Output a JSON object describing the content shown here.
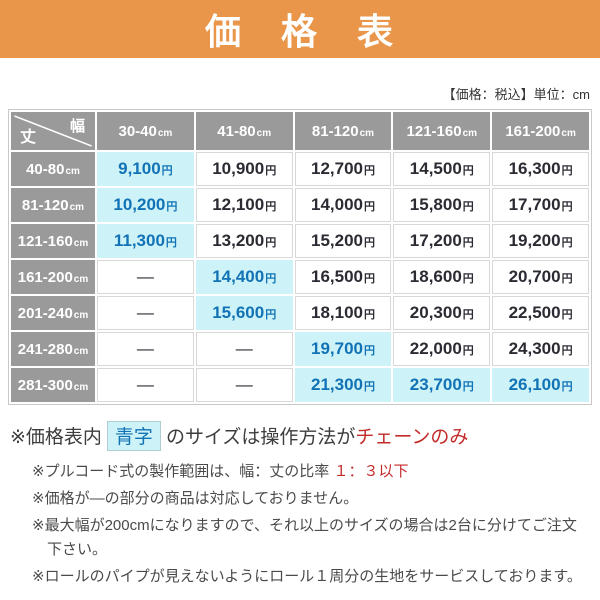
{
  "banner": {
    "title": "価　格　表"
  },
  "table": {
    "note_right": "【価格：税込】単位：cm",
    "corner": {
      "width_label": "幅",
      "height_label": "丈"
    },
    "unit": "cm",
    "yen": "円",
    "dash": "—",
    "columns": [
      "30-40",
      "41-80",
      "81-120",
      "121-160",
      "161-200"
    ],
    "rows": [
      {
        "label": "40-80",
        "cells": [
          {
            "value": "9,100",
            "style": "blue"
          },
          {
            "value": "10,900",
            "style": "normal"
          },
          {
            "value": "12,700",
            "style": "normal"
          },
          {
            "value": "14,500",
            "style": "normal"
          },
          {
            "value": "16,300",
            "style": "normal"
          }
        ]
      },
      {
        "label": "81-120",
        "cells": [
          {
            "value": "10,200",
            "style": "blue"
          },
          {
            "value": "12,100",
            "style": "normal"
          },
          {
            "value": "14,000",
            "style": "normal"
          },
          {
            "value": "15,800",
            "style": "normal"
          },
          {
            "value": "17,700",
            "style": "normal"
          }
        ]
      },
      {
        "label": "121-160",
        "cells": [
          {
            "value": "11,300",
            "style": "blue"
          },
          {
            "value": "13,200",
            "style": "normal"
          },
          {
            "value": "15,200",
            "style": "normal"
          },
          {
            "value": "17,200",
            "style": "normal"
          },
          {
            "value": "19,200",
            "style": "normal"
          }
        ]
      },
      {
        "label": "161-200",
        "cells": [
          {
            "value": "—",
            "style": "dash"
          },
          {
            "value": "14,400",
            "style": "blue"
          },
          {
            "value": "16,500",
            "style": "normal"
          },
          {
            "value": "18,600",
            "style": "normal"
          },
          {
            "value": "20,700",
            "style": "normal"
          }
        ]
      },
      {
        "label": "201-240",
        "cells": [
          {
            "value": "—",
            "style": "dash"
          },
          {
            "value": "15,600",
            "style": "blue"
          },
          {
            "value": "18,100",
            "style": "normal"
          },
          {
            "value": "20,300",
            "style": "normal"
          },
          {
            "value": "22,500",
            "style": "normal"
          }
        ]
      },
      {
        "label": "241-280",
        "cells": [
          {
            "value": "—",
            "style": "dash"
          },
          {
            "value": "—",
            "style": "dash"
          },
          {
            "value": "19,700",
            "style": "blue"
          },
          {
            "value": "22,000",
            "style": "normal"
          },
          {
            "value": "24,300",
            "style": "normal"
          }
        ]
      },
      {
        "label": "281-300",
        "cells": [
          {
            "value": "—",
            "style": "dash"
          },
          {
            "value": "—",
            "style": "dash"
          },
          {
            "value": "21,300",
            "style": "blue"
          },
          {
            "value": "23,700",
            "style": "blue"
          },
          {
            "value": "26,100",
            "style": "blue"
          }
        ]
      }
    ]
  },
  "notes": {
    "note1": {
      "prefix": "※価格表内",
      "badge": "青字",
      "mid": "のサイズは操作方法が",
      "red": "チェーンのみ"
    },
    "note2": {
      "text": "※プルコード式の製作範囲は、幅：丈の比率 ",
      "red": "１：３以下"
    },
    "note3": "※価格が—の部分の商品は対応しておりません。",
    "note4": "※最大幅が200cmになりますので、それ以上のサイズの場合は2台に分けてご注文下さい。",
    "note5": "※ロールのパイプが見えないようにロール１周分の生地をサービスしております。"
  },
  "colors": {
    "banner_orange": "#e9964b",
    "header_gray": "#9a9a9a",
    "highlight_cyan": "#cdf2f7",
    "blue_text": "#1173b5",
    "red_text": "#c42b2b",
    "price_text": "#2b2b33"
  }
}
